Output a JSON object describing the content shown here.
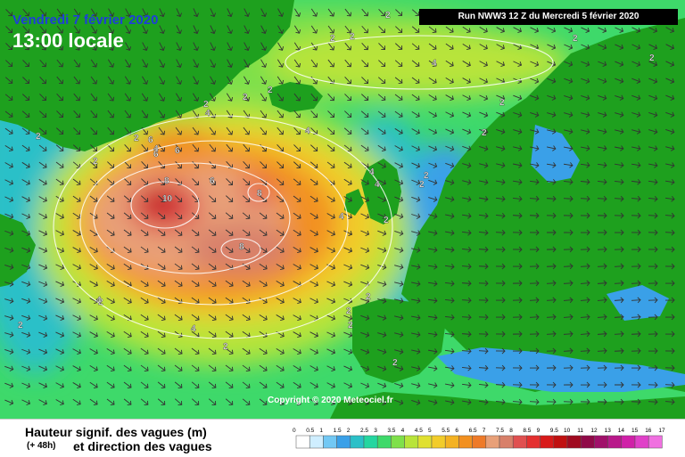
{
  "header": {
    "date": "Vendredi 7 février 2020",
    "time": "13:00 locale",
    "run": "Run NWW3 12 Z du Mercredi 5 février 2020",
    "copyright": "Copyright © 2020 Meteociel.fr"
  },
  "legend": {
    "title": "Hauteur signif. des vagues (m)",
    "lead": "(+ 48h)",
    "subtitle": "et direction des vagues",
    "ticks": [
      "0",
      "0.5",
      "1",
      "1.5",
      "2",
      "2.5",
      "3",
      "3.5",
      "4",
      "4.5",
      "5",
      "5.5",
      "6",
      "6.5",
      "7",
      "7.5",
      "8",
      "8.5",
      "9",
      "9.5",
      "10",
      "11",
      "12",
      "13",
      "14",
      "15",
      "16",
      "17"
    ],
    "colors": [
      "#ffffff",
      "#cfeeff",
      "#72c8f4",
      "#3aa0e8",
      "#2bc0c8",
      "#25d6a0",
      "#3ed96a",
      "#7fe04a",
      "#b8e43a",
      "#e0e030",
      "#f2cc2a",
      "#f4b222",
      "#f29020",
      "#ee7a28",
      "#e8a078",
      "#d8806a",
      "#e05050",
      "#e43030",
      "#d81a1a",
      "#c01010",
      "#a00a20",
      "#900a48",
      "#a0106a",
      "#b8188a",
      "#d020a8",
      "#e040c8",
      "#f070e0"
    ]
  },
  "map": {
    "contour_labels": [
      "2",
      "2",
      "2",
      "2",
      "2",
      "2",
      "2",
      "2",
      "2",
      "2",
      "2",
      "2",
      "2",
      "2",
      "4",
      "4",
      "4",
      "4",
      "4",
      "4",
      "4",
      "6",
      "6",
      "6",
      "6",
      "8",
      "8",
      "8",
      "10",
      "2",
      "2",
      "2",
      "4",
      "4",
      "2",
      "2",
      "2",
      "2",
      "2",
      "2"
    ]
  }
}
